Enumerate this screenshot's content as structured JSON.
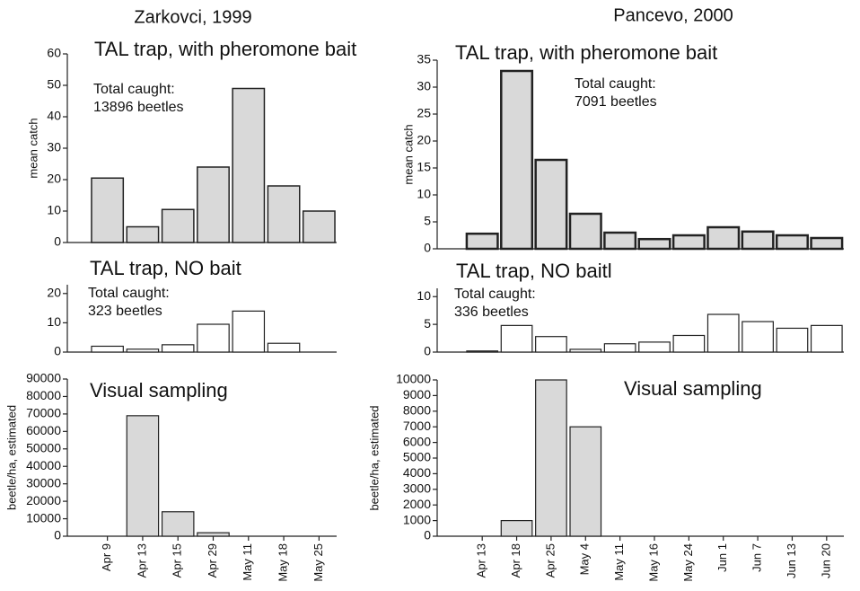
{
  "columns": [
    "Zarkovci, 1999",
    "Pancevo, 2000"
  ],
  "chart_data": [
    {
      "type": "bar",
      "title": "TAL trap, with pheromone bait",
      "annotation": [
        "Total caught:",
        "13896 beetles"
      ],
      "ylabel": "mean catch",
      "values": [
        20.5,
        5,
        10.5,
        24,
        49,
        18,
        10
      ],
      "color": "#d9d9d9",
      "ylim": [
        0,
        60
      ],
      "yticks": [
        0,
        10,
        20,
        30,
        40,
        50,
        60
      ]
    },
    {
      "type": "bar",
      "title": "TAL trap, NO bait",
      "annotation": [
        "Total caught:",
        "323 beetles"
      ],
      "values": [
        2,
        1,
        2.5,
        9.5,
        14,
        3,
        0
      ],
      "color": "#ffffff",
      "ylim": [
        0,
        23
      ],
      "yticks": [
        0,
        10,
        20
      ]
    },
    {
      "type": "bar",
      "title": "Visual sampling",
      "ylabel": "beetle/ha, estimated",
      "categories": [
        "Apr 9",
        "Apr 13",
        "Apr 15",
        "Apr 29",
        "May 11",
        "May 18",
        "May 25"
      ],
      "values": [
        0,
        69000,
        14000,
        2000,
        0,
        0,
        0
      ],
      "color": "#d9d9d9",
      "ylim": [
        0,
        90000
      ],
      "yticks": [
        0,
        10000,
        20000,
        30000,
        40000,
        50000,
        60000,
        70000,
        80000,
        90000
      ]
    },
    {
      "type": "bar",
      "title": "TAL trap, with pheromone bait",
      "annotation": [
        "Total caught:",
        "7091 beetles"
      ],
      "ylabel": "mean catch",
      "values": [
        2.8,
        33,
        16.5,
        6.5,
        3,
        1.8,
        2.5,
        4,
        3.2,
        2.5,
        2
      ],
      "color": "#d9d9d9",
      "ylim": [
        0,
        35
      ],
      "yticks": [
        0,
        5,
        10,
        15,
        20,
        25,
        30,
        35
      ]
    },
    {
      "type": "bar",
      "title": "TAL trap, NO baitl",
      "annotation": [
        "Total caught:",
        "336 beetles"
      ],
      "values": [
        0.2,
        4.8,
        2.8,
        0.5,
        1.5,
        1.8,
        3,
        6.8,
        5.5,
        4.3,
        4.8
      ],
      "color": "#ffffff",
      "ylim": [
        0,
        11.5
      ],
      "yticks": [
        0,
        5,
        10
      ]
    },
    {
      "type": "bar",
      "title": "Visual sampling",
      "ylabel": "beetle/ha, estimated",
      "categories": [
        "Apr 13",
        "Apr 18",
        "Apr 25",
        "May 4",
        "May 11",
        "May 16",
        "May 24",
        "Jun 1",
        "Jun 7",
        "Jun 13",
        "Jun 20"
      ],
      "values": [
        0,
        1000,
        10000,
        7000,
        0,
        0,
        0,
        0,
        0,
        0,
        0
      ],
      "color": "#d9d9d9",
      "ylim": [
        0,
        10000
      ],
      "yticks": [
        0,
        1000,
        2000,
        3000,
        4000,
        5000,
        6000,
        7000,
        8000,
        9000,
        10000
      ]
    }
  ]
}
